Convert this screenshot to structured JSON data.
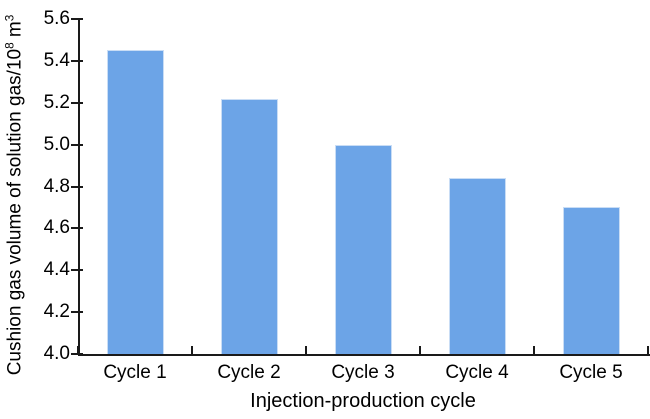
{
  "chart_data": {
    "type": "bar",
    "categories": [
      "Cycle 1",
      "Cycle 2",
      "Cycle 3",
      "Cycle 4",
      "Cycle 5"
    ],
    "values": [
      5.45,
      5.22,
      5.0,
      4.84,
      4.7
    ],
    "title": "",
    "xlabel": "Injection-production cycle",
    "ylabel": "Cushion gas volume of solution gas/10⁸ m³",
    "ylabel_parts": {
      "text": "Cushion gas volume of solution gas/10",
      "exp": "8",
      "unit": " m",
      "unit_exp": "3"
    },
    "ylim": [
      4.0,
      5.6
    ],
    "ytick_step": 0.2,
    "ytick_labels": [
      "4.0",
      "4.2",
      "4.4",
      "4.6",
      "4.8",
      "5.0",
      "5.2",
      "5.4",
      "5.6"
    ],
    "grid": false,
    "legend": false,
    "colors": {
      "bar_fill": "#6CA4E7",
      "bar_border": "#C9DDF5",
      "axis": "#1A1A1A",
      "text": "#000000",
      "background": "#FFFFFF"
    }
  }
}
